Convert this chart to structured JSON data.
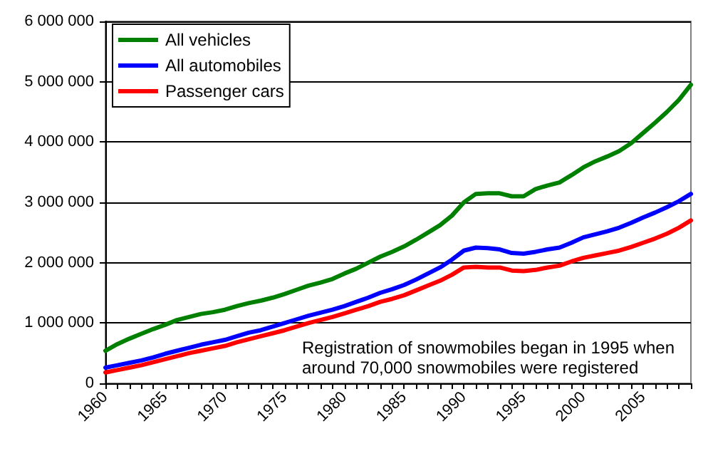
{
  "chart_data": {
    "type": "line",
    "categories": [
      "1960",
      null,
      null,
      null,
      null,
      "1965",
      null,
      null,
      null,
      null,
      "1970",
      null,
      null,
      null,
      null,
      "1975",
      null,
      null,
      null,
      null,
      "1980",
      null,
      null,
      null,
      null,
      "1985",
      null,
      null,
      null,
      null,
      "1990",
      null,
      null,
      null,
      null,
      "1995",
      null,
      null,
      null,
      null,
      "2000",
      null,
      null,
      null,
      null,
      "2005",
      null,
      null,
      null,
      null
    ],
    "series": [
      {
        "name": "All vehicles",
        "color": "#008000",
        "values": [
          540000,
          650000,
          740000,
          820000,
          900000,
          970000,
          1050000,
          1100000,
          1150000,
          1180000,
          1220000,
          1280000,
          1330000,
          1370000,
          1420000,
          1480000,
          1550000,
          1620000,
          1670000,
          1730000,
          1820000,
          1900000,
          2000000,
          2100000,
          2180000,
          2270000,
          2380000,
          2500000,
          2620000,
          2780000,
          3000000,
          3140000,
          3150000,
          3150000,
          3100000,
          3100000,
          3220000,
          3280000,
          3330000,
          3450000,
          3580000,
          3680000,
          3760000,
          3850000,
          3980000,
          4150000,
          4320000,
          4500000,
          4700000,
          4950000
        ]
      },
      {
        "name": "All automobiles",
        "color": "#0000ff",
        "values": [
          260000,
          300000,
          340000,
          380000,
          430000,
          490000,
          540000,
          590000,
          640000,
          680000,
          720000,
          780000,
          840000,
          880000,
          940000,
          1000000,
          1060000,
          1120000,
          1170000,
          1220000,
          1280000,
          1350000,
          1420000,
          1500000,
          1560000,
          1630000,
          1720000,
          1820000,
          1920000,
          2050000,
          2200000,
          2250000,
          2240000,
          2220000,
          2160000,
          2150000,
          2180000,
          2220000,
          2250000,
          2330000,
          2420000,
          2470000,
          2520000,
          2580000,
          2660000,
          2750000,
          2830000,
          2920000,
          3020000,
          3140000
        ]
      },
      {
        "name": "Passenger cars",
        "color": "#ff0000",
        "values": [
          180000,
          220000,
          260000,
          300000,
          350000,
          400000,
          450000,
          500000,
          540000,
          580000,
          620000,
          680000,
          730000,
          780000,
          830000,
          880000,
          940000,
          1000000,
          1050000,
          1100000,
          1160000,
          1220000,
          1280000,
          1350000,
          1400000,
          1460000,
          1540000,
          1620000,
          1700000,
          1800000,
          1920000,
          1930000,
          1920000,
          1920000,
          1870000,
          1860000,
          1880000,
          1920000,
          1950000,
          2020000,
          2080000,
          2120000,
          2160000,
          2200000,
          2260000,
          2330000,
          2400000,
          2480000,
          2580000,
          2700000
        ]
      }
    ],
    "ylim": [
      0,
      6000000
    ],
    "yticks": [
      {
        "value": 0,
        "label": "0"
      },
      {
        "value": 1000000,
        "label": "1 000 000"
      },
      {
        "value": 2000000,
        "label": "2 000 000"
      },
      {
        "value": 3000000,
        "label": "3 000 000"
      },
      {
        "value": 4000000,
        "label": "4 000 000"
      },
      {
        "value": 5000000,
        "label": "5 000 000"
      },
      {
        "value": 6000000,
        "label": "6 000 000"
      }
    ],
    "grid": "y",
    "legend": "top left",
    "marker": "none",
    "line_style": "solid",
    "annotations": [
      "Registration of snowmobiles began in 1995 when around 70,000 snowmobiles were registered"
    ]
  }
}
